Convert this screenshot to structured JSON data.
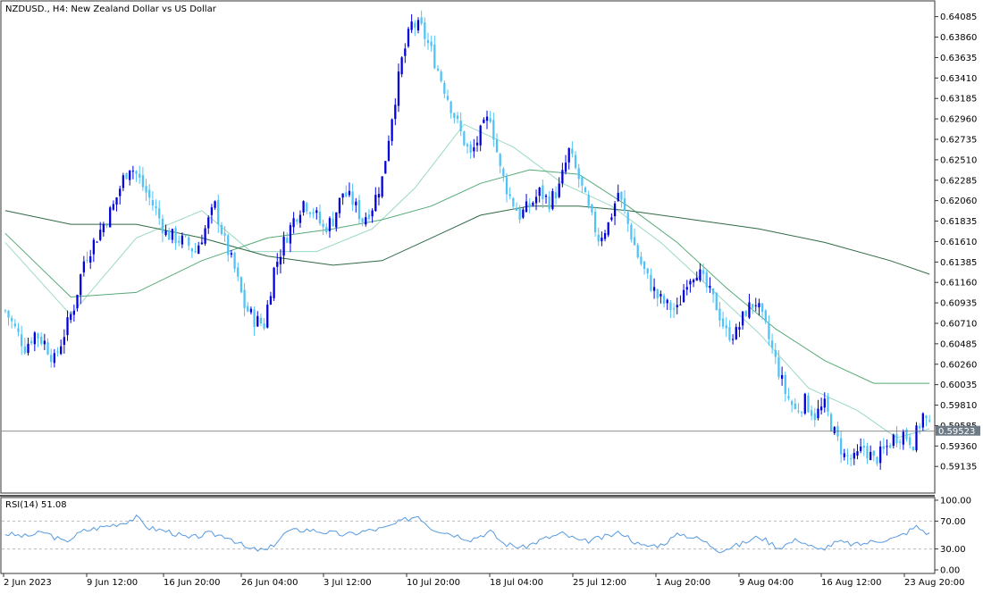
{
  "header": {
    "title": "NZDUSD., H4:  New Zealand Dollar vs US Dollar"
  },
  "rsi_panel": {
    "label": "RSI(14) 51.08"
  },
  "colors": {
    "bull_candle": "#0000dd",
    "bear_candle": "#4fc3f7",
    "ma_fast": "#9ad9c3",
    "ma_mid": "#55aa77",
    "ma_slow": "#2e6b45",
    "rsi_line": "#5599e0",
    "border": "#333333",
    "grid_dashed": "#bbbbbb"
  },
  "chart_data": {
    "type": "candlestick",
    "symbol": "NZDUSD.",
    "timeframe": "H4",
    "y_axis": {
      "ticks": [
        "0.64085",
        "0.63860",
        "0.63635",
        "0.63410",
        "0.63185",
        "0.62960",
        "0.62735",
        "0.62510",
        "0.62285",
        "0.62060",
        "0.61835",
        "0.61610",
        "0.61385",
        "0.61160",
        "0.60935",
        "0.60710",
        "0.60485",
        "0.60260",
        "0.60035",
        "0.59810",
        "0.59585",
        "0.59360",
        "0.59135"
      ],
      "range": [
        0.5896,
        0.6417
      ]
    },
    "x_axis": {
      "ticks": [
        "2 Jun 2023",
        "9 Jun 12:00",
        "16 Jun 20:00",
        "26 Jun 04:00",
        "3 Jul 12:00",
        "10 Jul 20:00",
        "18 Jul 04:00",
        "25 Jul 12:00",
        "1 Aug 20:00",
        "9 Aug 04:00",
        "16 Aug 12:00",
        "23 Aug 20:00"
      ]
    },
    "current_price": "0.59523",
    "close_path": [
      [
        0,
        0.6085
      ],
      [
        3,
        0.6065
      ],
      [
        6,
        0.6045
      ],
      [
        9,
        0.606
      ],
      [
        12,
        0.605
      ],
      [
        15,
        0.603
      ],
      [
        18,
        0.606
      ],
      [
        21,
        0.609
      ],
      [
        24,
        0.614
      ],
      [
        27,
        0.616
      ],
      [
        30,
        0.618
      ],
      [
        33,
        0.62
      ],
      [
        36,
        0.623
      ],
      [
        38,
        0.6245
      ],
      [
        40,
        0.6235
      ],
      [
        43,
        0.6215
      ],
      [
        46,
        0.6195
      ],
      [
        49,
        0.617
      ],
      [
        52,
        0.6165
      ],
      [
        55,
        0.616
      ],
      [
        58,
        0.615
      ],
      [
        61,
        0.6175
      ],
      [
        64,
        0.62
      ],
      [
        67,
        0.616
      ],
      [
        70,
        0.613
      ],
      [
        73,
        0.609
      ],
      [
        76,
        0.6075
      ],
      [
        79,
        0.607
      ],
      [
        82,
        0.613
      ],
      [
        85,
        0.616
      ],
      [
        88,
        0.6185
      ],
      [
        91,
        0.6205
      ],
      [
        94,
        0.6195
      ],
      [
        97,
        0.6175
      ],
      [
        100,
        0.6185
      ],
      [
        103,
        0.6215
      ],
      [
        106,
        0.6205
      ],
      [
        109,
        0.6185
      ],
      [
        112,
        0.62
      ],
      [
        115,
        0.623
      ],
      [
        118,
        0.63
      ],
      [
        121,
        0.636
      ],
      [
        124,
        0.64
      ],
      [
        127,
        0.6395
      ],
      [
        130,
        0.637
      ],
      [
        133,
        0.634
      ],
      [
        136,
        0.631
      ],
      [
        139,
        0.628
      ],
      [
        142,
        0.6255
      ],
      [
        145,
        0.628
      ],
      [
        148,
        0.63
      ],
      [
        151,
        0.624
      ],
      [
        154,
        0.621
      ],
      [
        157,
        0.619
      ],
      [
        160,
        0.62
      ],
      [
        163,
        0.6215
      ],
      [
        166,
        0.6205
      ],
      [
        169,
        0.622
      ],
      [
        172,
        0.626
      ],
      [
        175,
        0.623
      ],
      [
        178,
        0.6195
      ],
      [
        181,
        0.6165
      ],
      [
        184,
        0.618
      ],
      [
        187,
        0.6215
      ],
      [
        190,
        0.618
      ],
      [
        193,
        0.6145
      ],
      [
        196,
        0.612
      ],
      [
        199,
        0.61
      ],
      [
        202,
        0.609
      ],
      [
        205,
        0.6085
      ],
      [
        208,
        0.612
      ],
      [
        211,
        0.613
      ],
      [
        214,
        0.611
      ],
      [
        217,
        0.609
      ],
      [
        220,
        0.606
      ],
      [
        223,
        0.606
      ],
      [
        226,
        0.6085
      ],
      [
        229,
        0.6095
      ],
      [
        232,
        0.6065
      ],
      [
        235,
        0.603
      ],
      [
        238,
        0.5995
      ],
      [
        241,
        0.5975
      ],
      [
        244,
        0.5985
      ],
      [
        247,
        0.597
      ],
      [
        250,
        0.598
      ],
      [
        253,
        0.595
      ],
      [
        256,
        0.5925
      ],
      [
        259,
        0.592
      ],
      [
        262,
        0.5935
      ],
      [
        265,
        0.592
      ],
      [
        268,
        0.593
      ],
      [
        271,
        0.5945
      ],
      [
        274,
        0.595
      ],
      [
        277,
        0.594
      ],
      [
        280,
        0.597
      ],
      [
        282,
        0.5955
      ]
    ],
    "rsi": {
      "period": 14,
      "value": "51.08",
      "range": [
        0,
        100
      ],
      "ticks": [
        "100.00",
        "70.00",
        "30.00",
        "0.00"
      ],
      "levels": [
        70,
        30
      ],
      "path": [
        [
          0,
          52
        ],
        [
          6,
          48
        ],
        [
          12,
          54
        ],
        [
          18,
          40
        ],
        [
          24,
          56
        ],
        [
          30,
          62
        ],
        [
          36,
          68
        ],
        [
          40,
          75
        ],
        [
          44,
          60
        ],
        [
          50,
          55
        ],
        [
          56,
          45
        ],
        [
          62,
          52
        ],
        [
          68,
          48
        ],
        [
          74,
          30
        ],
        [
          80,
          28
        ],
        [
          86,
          55
        ],
        [
          92,
          58
        ],
        [
          98,
          54
        ],
        [
          104,
          50
        ],
        [
          110,
          56
        ],
        [
          116,
          60
        ],
        [
          122,
          72
        ],
        [
          126,
          78
        ],
        [
          130,
          60
        ],
        [
          136,
          52
        ],
        [
          142,
          44
        ],
        [
          148,
          55
        ],
        [
          152,
          38
        ],
        [
          158,
          32
        ],
        [
          164,
          44
        ],
        [
          170,
          52
        ],
        [
          176,
          40
        ],
        [
          182,
          46
        ],
        [
          188,
          54
        ],
        [
          194,
          34
        ],
        [
          200,
          36
        ],
        [
          206,
          52
        ],
        [
          212,
          44
        ],
        [
          218,
          28
        ],
        [
          224,
          36
        ],
        [
          230,
          48
        ],
        [
          236,
          32
        ],
        [
          242,
          44
        ],
        [
          248,
          28
        ],
        [
          254,
          40
        ],
        [
          260,
          36
        ],
        [
          266,
          42
        ],
        [
          272,
          46
        ],
        [
          278,
          62
        ],
        [
          282,
          51
        ]
      ]
    },
    "moving_averages": [
      {
        "period_label": "fast",
        "path": [
          [
            0,
            0.616
          ],
          [
            20,
            0.608
          ],
          [
            40,
            0.6165
          ],
          [
            60,
            0.6195
          ],
          [
            75,
            0.615
          ],
          [
            95,
            0.615
          ],
          [
            112,
            0.6175
          ],
          [
            125,
            0.622
          ],
          [
            140,
            0.629
          ],
          [
            155,
            0.6265
          ],
          [
            170,
            0.6225
          ],
          [
            185,
            0.62
          ],
          [
            200,
            0.616
          ],
          [
            215,
            0.611
          ],
          [
            230,
            0.606
          ],
          [
            245,
            0.6
          ],
          [
            260,
            0.5975
          ],
          [
            272,
            0.5945
          ],
          [
            282,
            0.5955
          ]
        ]
      },
      {
        "period_label": "mid",
        "path": [
          [
            0,
            0.617
          ],
          [
            20,
            0.61
          ],
          [
            40,
            0.6105
          ],
          [
            60,
            0.614
          ],
          [
            80,
            0.6165
          ],
          [
            100,
            0.6175
          ],
          [
            115,
            0.6185
          ],
          [
            130,
            0.62
          ],
          [
            145,
            0.6225
          ],
          [
            160,
            0.624
          ],
          [
            175,
            0.6235
          ],
          [
            190,
            0.62
          ],
          [
            205,
            0.616
          ],
          [
            220,
            0.611
          ],
          [
            235,
            0.6065
          ],
          [
            250,
            0.603
          ],
          [
            265,
            0.6005
          ],
          [
            282,
            0.6005
          ]
        ]
      },
      {
        "period_label": "slow",
        "path": [
          [
            0,
            0.6195
          ],
          [
            20,
            0.618
          ],
          [
            40,
            0.618
          ],
          [
            60,
            0.6165
          ],
          [
            80,
            0.6145
          ],
          [
            100,
            0.6135
          ],
          [
            115,
            0.614
          ],
          [
            130,
            0.6165
          ],
          [
            145,
            0.619
          ],
          [
            160,
            0.62
          ],
          [
            175,
            0.62
          ],
          [
            190,
            0.6195
          ],
          [
            210,
            0.6185
          ],
          [
            230,
            0.6175
          ],
          [
            250,
            0.616
          ],
          [
            270,
            0.614
          ],
          [
            282,
            0.6125
          ]
        ]
      }
    ]
  }
}
